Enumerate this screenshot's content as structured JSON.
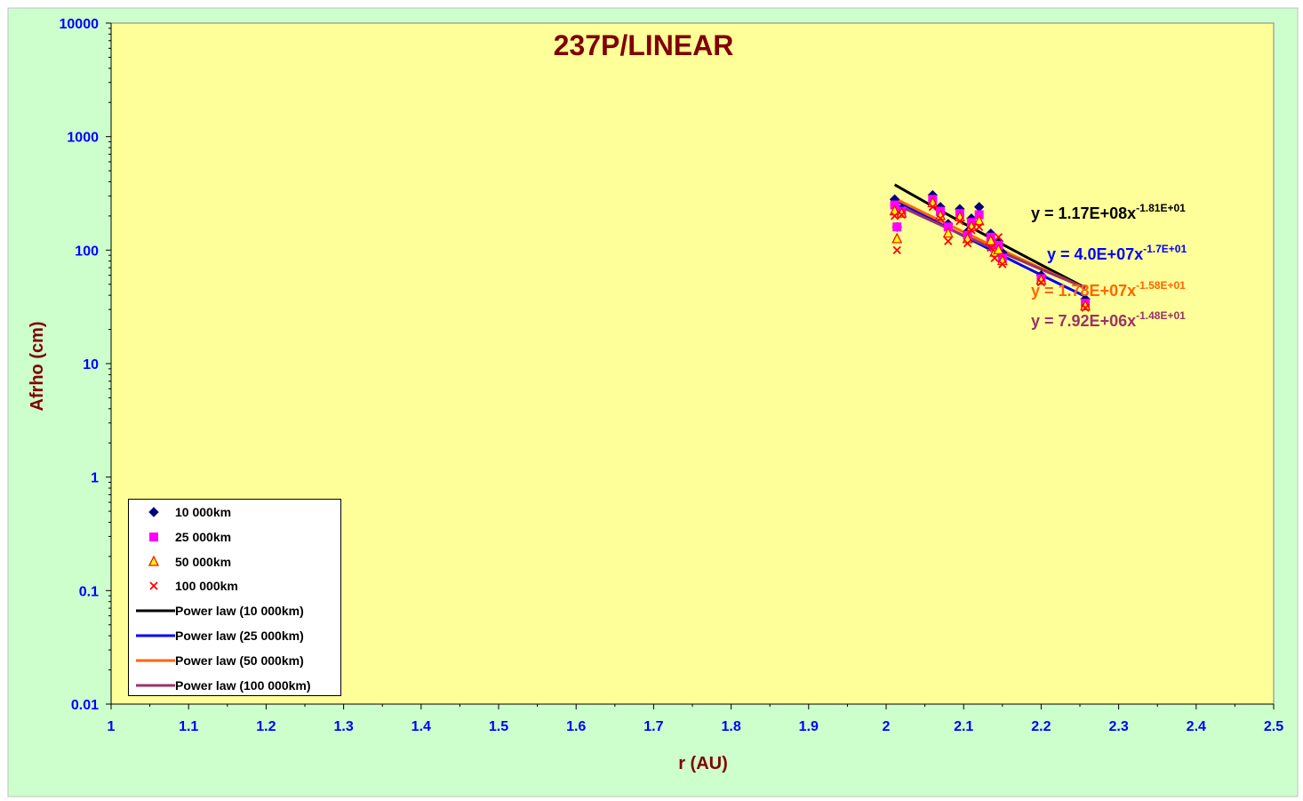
{
  "chart_data": {
    "type": "scatter",
    "title": "237P/LINEAR",
    "xlabel": "r (AU)",
    "ylabel": "Afrho (cm)",
    "xlim": [
      1,
      2.5
    ],
    "ylim": [
      0.01,
      10000
    ],
    "yscale": "log",
    "x_ticks": [
      "1",
      "1.1",
      "1.2",
      "1.3",
      "1.4",
      "1.5",
      "1.6",
      "1.7",
      "1.8",
      "1.9",
      "2",
      "2.1",
      "2.2",
      "2.3",
      "2.4",
      "2.5"
    ],
    "y_ticks": [
      "0.01",
      "0.1",
      "1",
      "10",
      "100",
      "1000",
      "10000"
    ],
    "legend_position": "bottom-left",
    "colors": {
      "outer_background": "#ccffcc",
      "plot_background": "#ffff99",
      "tick_label": "#0000ff",
      "title": "#800000",
      "axis_label": "#800000"
    },
    "series": [
      {
        "name": "10 000km",
        "marker": "diamond",
        "color": "#000080",
        "x": [
          2.011,
          2.014,
          2.02,
          2.06,
          2.07,
          2.08,
          2.095,
          2.105,
          2.11,
          2.12,
          2.135,
          2.14,
          2.145,
          2.15,
          2.2,
          2.257
        ],
        "y": [
          280,
          160,
          230,
          305,
          240,
          170,
          230,
          145,
          190,
          240,
          140,
          115,
          120,
          95,
          60,
          37
        ]
      },
      {
        "name": "25 000km",
        "marker": "square",
        "color": "#ff00ff",
        "x": [
          2.011,
          2.014,
          2.02,
          2.06,
          2.07,
          2.08,
          2.095,
          2.105,
          2.11,
          2.12,
          2.135,
          2.14,
          2.145,
          2.15,
          2.2,
          2.257
        ],
        "y": [
          250,
          160,
          220,
          280,
          220,
          160,
          210,
          135,
          175,
          205,
          130,
          105,
          110,
          85,
          56,
          34
        ]
      },
      {
        "name": "50 000km",
        "marker": "triangle",
        "color": "#ff0000",
        "fill": "#ffff00",
        "x": [
          2.011,
          2.014,
          2.02,
          2.06,
          2.07,
          2.08,
          2.095,
          2.105,
          2.11,
          2.12,
          2.135,
          2.14,
          2.145,
          2.15,
          2.2,
          2.257
        ],
        "y": [
          220,
          125,
          210,
          260,
          200,
          140,
          195,
          125,
          160,
          180,
          120,
          95,
          100,
          80,
          54,
          32
        ]
      },
      {
        "name": "100 000km",
        "marker": "x",
        "color": "#ff0000",
        "x": [
          2.011,
          2.014,
          2.02,
          2.06,
          2.07,
          2.08,
          2.095,
          2.105,
          2.11,
          2.12,
          2.135,
          2.14,
          2.145,
          2.15,
          2.2,
          2.257
        ],
        "y": [
          200,
          100,
          205,
          240,
          190,
          120,
          180,
          115,
          150,
          160,
          105,
          85,
          130,
          75,
          52,
          31
        ]
      },
      {
        "name": "Power law (10 000km)",
        "type": "trendline",
        "color": "#000000",
        "a": 117000000.0,
        "b": -18.1,
        "x_range": [
          2.011,
          2.257
        ]
      },
      {
        "name": "Power law (25 000km)",
        "type": "trendline",
        "color": "#0000ff",
        "a": 40000000.0,
        "b": -17,
        "x_range": [
          2.011,
          2.257
        ]
      },
      {
        "name": "Power law (50 000km)",
        "type": "trendline",
        "color": "#ff6600",
        "a": 17800000.0,
        "b": -15.8,
        "x_range": [
          2.011,
          2.257
        ]
      },
      {
        "name": "Power law (100 000km)",
        "type": "trendline",
        "color": "#993366",
        "a": 7920000.0,
        "b": -14.8,
        "x_range": [
          2.011,
          2.257
        ]
      }
    ],
    "annotations": [
      {
        "base": "y = 1.17E+08x",
        "exp": "-1.81E+01",
        "color": "#000000"
      },
      {
        "base": "y = 4.0E+07x",
        "exp": "-1.7E+01",
        "color": "#0000ff"
      },
      {
        "base": "y = 1.78E+07x",
        "exp": "-1.58E+01",
        "color": "#ff6600"
      },
      {
        "base": "y = 7.92E+06x",
        "exp": "-1.48E+01",
        "color": "#993366"
      }
    ]
  }
}
